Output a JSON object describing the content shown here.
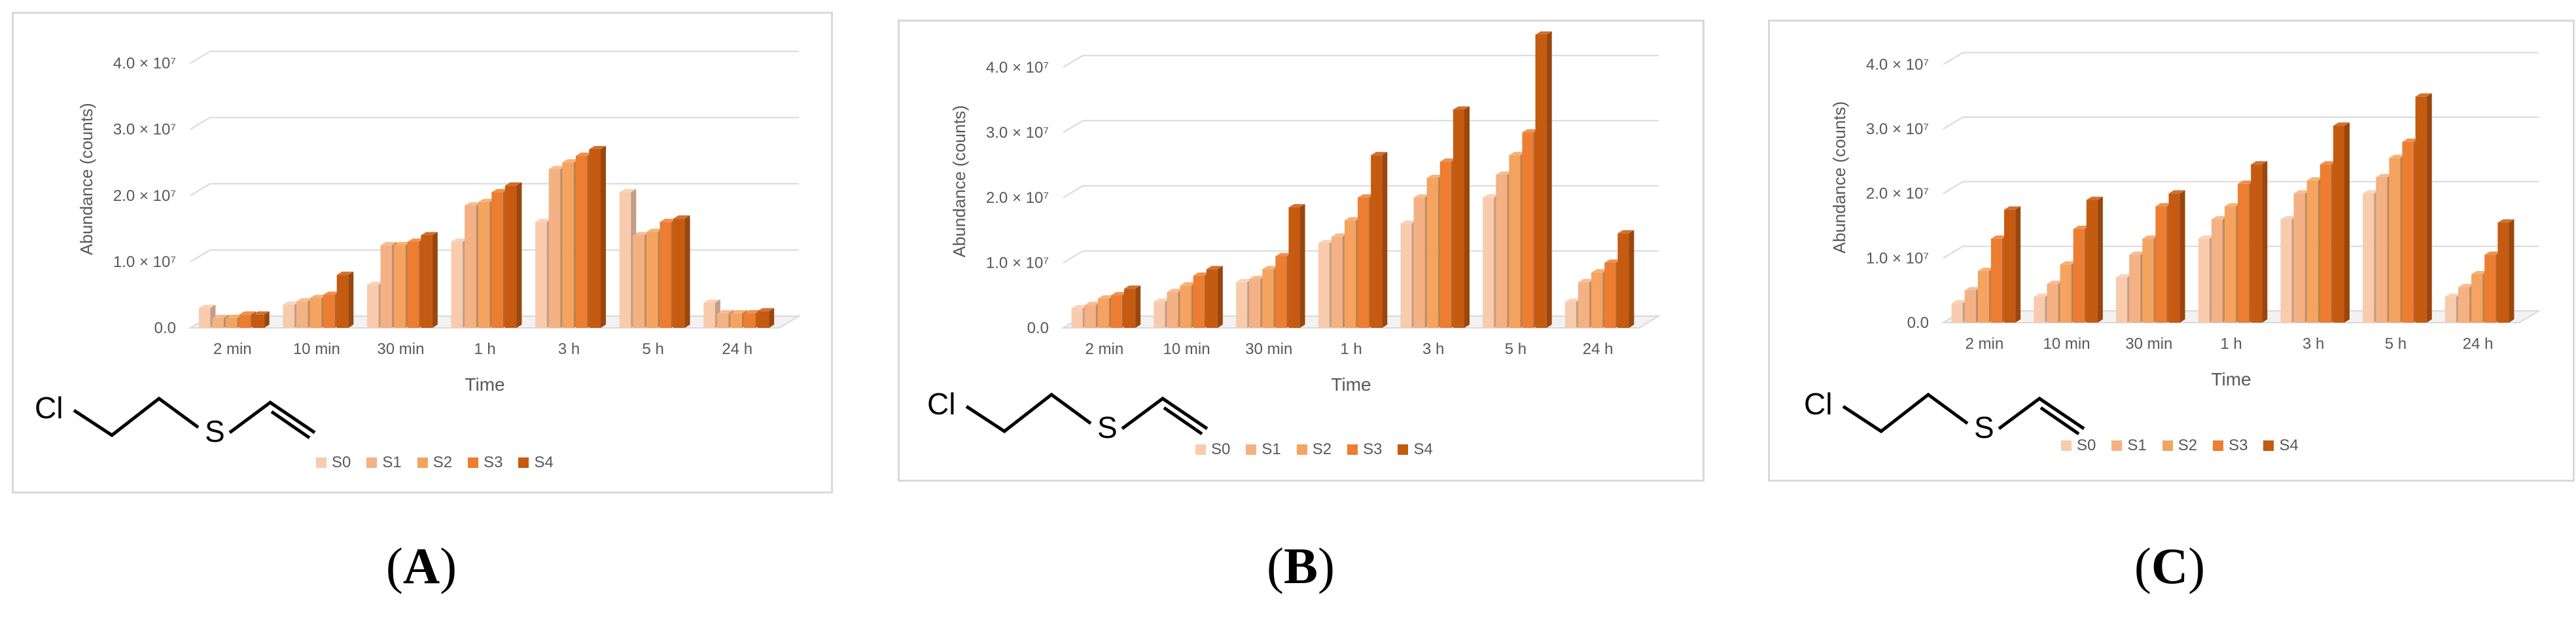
{
  "panels": [
    {
      "label_open": "(",
      "label_letter": "A",
      "label_close": ")"
    },
    {
      "label_open": "(",
      "label_letter": "B",
      "label_close": ")"
    },
    {
      "label_open": "(",
      "label_letter": "C",
      "label_close": ")"
    }
  ],
  "molecule": {
    "cl_label": "Cl",
    "s_label": "S"
  },
  "colors": {
    "series": [
      "#f8cbad",
      "#f4b183",
      "#f4a460",
      "#ed7d31",
      "#c55a11"
    ],
    "grid": "#d9d9d9",
    "axis_text": "#595959"
  },
  "chart_data": [
    {
      "type": "bar",
      "style": "3d-clustered-column",
      "categories": [
        "2 min",
        "10 min",
        "30 min",
        "1 h",
        "3 h",
        "5 h",
        "24 h"
      ],
      "xlabel": "Time",
      "ylabel": "Abundance (counts)",
      "ylim": [
        0,
        45000000
      ],
      "ytick_labels": [
        "0.0",
        "1.0 × 10⁷",
        "2.0 × 10⁷",
        "3.0 × 10⁷",
        "4.0 × 10⁷"
      ],
      "grid": true,
      "legend_position": "bottom",
      "series": [
        {
          "name": "S0",
          "values": [
            3000000,
            3500000,
            6500000,
            13000000,
            16000000,
            20500000,
            3800000
          ]
        },
        {
          "name": "S1",
          "values": [
            1500000,
            4000000,
            12500000,
            18500000,
            24000000,
            14000000,
            2200000
          ]
        },
        {
          "name": "S2",
          "values": [
            1500000,
            4500000,
            12500000,
            19000000,
            25000000,
            14500000,
            2200000
          ]
        },
        {
          "name": "S3",
          "values": [
            2000000,
            5000000,
            13000000,
            20500000,
            26000000,
            16000000,
            2200000
          ]
        },
        {
          "name": "S4",
          "values": [
            2000000,
            8000000,
            14000000,
            21500000,
            27000000,
            16500000,
            2500000
          ]
        }
      ]
    },
    {
      "type": "bar",
      "style": "3d-clustered-column",
      "categories": [
        "2 min",
        "10 min",
        "30 min",
        "1 h",
        "3 h",
        "5 h",
        "24 h"
      ],
      "xlabel": "Time",
      "ylabel": "Abundance (counts)",
      "ylim": [
        0,
        45000000
      ],
      "ytick_labels": [
        "0.0",
        "1.0 × 10⁷",
        "2.0 × 10⁷",
        "3.0 × 10⁷",
        "4.0 × 10⁷"
      ],
      "grid": true,
      "legend_position": "bottom",
      "series": [
        {
          "name": "S0",
          "values": [
            3000000,
            4000000,
            7000000,
            13000000,
            16000000,
            20000000,
            4000000
          ]
        },
        {
          "name": "S1",
          "values": [
            3500000,
            5500000,
            7500000,
            14000000,
            20000000,
            23500000,
            7000000
          ]
        },
        {
          "name": "S2",
          "values": [
            4500000,
            6500000,
            9000000,
            16500000,
            23000000,
            26500000,
            8500000
          ]
        },
        {
          "name": "S3",
          "values": [
            5000000,
            8000000,
            11000000,
            20000000,
            25500000,
            30000000,
            10000000
          ]
        },
        {
          "name": "S4",
          "values": [
            6000000,
            9000000,
            18500000,
            26500000,
            33500000,
            45000000,
            14500000
          ]
        }
      ]
    },
    {
      "type": "bar",
      "style": "3d-clustered-column",
      "categories": [
        "2 min",
        "10 min",
        "30 min",
        "1 h",
        "3 h",
        "5 h",
        "24 h"
      ],
      "xlabel": "Time",
      "ylabel": "Abundance (counts)",
      "ylim": [
        0,
        45000000
      ],
      "ytick_labels": [
        "0.0",
        "1.0 × 10⁷",
        "2.0 × 10⁷",
        "3.0 × 10⁷",
        "4.0 × 10⁷"
      ],
      "grid": true,
      "legend_position": "bottom",
      "series": [
        {
          "name": "S0",
          "values": [
            3000000,
            4000000,
            7000000,
            13000000,
            16000000,
            20000000,
            4000000
          ]
        },
        {
          "name": "S1",
          "values": [
            5000000,
            6000000,
            10500000,
            16000000,
            20000000,
            22500000,
            5500000
          ]
        },
        {
          "name": "S2",
          "values": [
            8000000,
            9000000,
            13000000,
            18000000,
            22000000,
            25500000,
            7500000
          ]
        },
        {
          "name": "S3",
          "values": [
            13000000,
            14500000,
            18000000,
            21500000,
            24500000,
            28000000,
            10500000
          ]
        },
        {
          "name": "S4",
          "values": [
            17500000,
            19000000,
            20000000,
            24500000,
            30500000,
            35000000,
            15500000
          ]
        }
      ]
    }
  ]
}
